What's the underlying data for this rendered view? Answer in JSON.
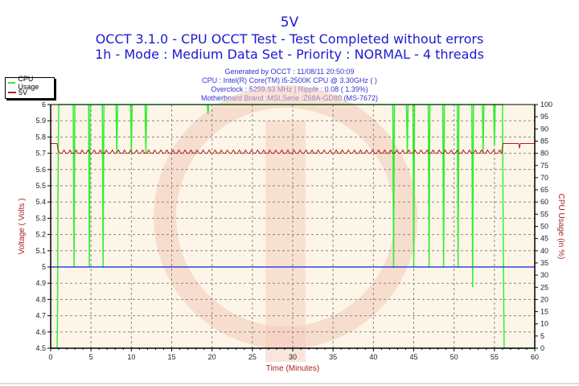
{
  "header": {
    "title": "5V",
    "subtitle": "OCCT 3.1.0 - CPU OCCT Test - Test Completed without errors",
    "mode_line": "1h - Mode : Medium Data Set - Priority : NORMAL - 4 threads"
  },
  "info": {
    "generated": "Generated by OCCT : 11/08/11 20:50:09",
    "cpu": "CPU : Intel(R) Core(TM) i5-2500K CPU @ 3.30GHz (  )",
    "overclock": "Overclock : 5299.93 MHz | Ripple : 0.08 ( 1.39%)",
    "motherboard": "Motherboard Brand :MSI,Serie :Z68A-GD80 (MS-7672)"
  },
  "legend": {
    "items": [
      {
        "label": "CPU Usage",
        "color": "#33ee33"
      },
      {
        "label": "5V",
        "color": "#aa2222"
      }
    ]
  },
  "colors": {
    "title": "#1a1ad0",
    "plot_bg": "#fdf6e8",
    "cpu": "#33ee33",
    "voltage": "#aa2222",
    "reference": "#3344dd",
    "axis_label": "#aa2222"
  },
  "chart_data": {
    "type": "line",
    "title": "5V",
    "xlabel": "Time (Minutes)",
    "ylabel": "Voltage ( Volts )",
    "y2label": "CPU Usage (in %)",
    "xlim": [
      0,
      60
    ],
    "ylim": [
      4.5,
      6
    ],
    "y2lim": [
      0,
      100
    ],
    "x_ticks": [
      0,
      5,
      10,
      15,
      20,
      25,
      30,
      35,
      40,
      45,
      50,
      55,
      60
    ],
    "y_ticks": [
      4.5,
      4.6,
      4.7,
      4.8,
      4.9,
      5,
      5.1,
      5.2,
      5.3,
      5.4,
      5.5,
      5.6,
      5.7,
      5.8,
      5.9,
      6
    ],
    "y2_ticks": [
      0,
      5,
      10,
      15,
      20,
      25,
      30,
      35,
      40,
      45,
      50,
      55,
      60,
      65,
      70,
      75,
      80,
      85,
      90,
      95,
      100
    ],
    "grid": true,
    "legend_position": "top-left",
    "series": [
      {
        "name": "5V",
        "axis": "left",
        "description": "Voltage ~5.76V at idle (0-0.8 min, 56-60 min), oscillating 5.70-5.72V under load",
        "x": [
          0,
          0.8,
          0.9,
          56,
          56.1,
          58,
          58.1,
          58.2,
          60
        ],
        "values": [
          5.76,
          5.76,
          5.71,
          5.71,
          5.76,
          5.76,
          5.73,
          5.76,
          5.76
        ]
      },
      {
        "name": "CPU Usage",
        "axis": "right",
        "description": "CPU at ~100% during test with intermittent dips; 0% at start and after ~56 min",
        "x": [
          0,
          0.8,
          1.0,
          2.9,
          4.8,
          6.5,
          8.2,
          10.0,
          11.8,
          42.6,
          44.4,
          46.2,
          48.0,
          49.8,
          51.6,
          53.4,
          55.0,
          56.2,
          60
        ],
        "values": [
          0,
          0,
          100,
          33,
          33,
          33,
          80,
          80,
          80,
          33,
          33,
          33,
          33,
          33,
          25,
          80,
          80,
          0,
          0
        ]
      },
      {
        "name": "Reference",
        "axis": "left",
        "description": "Nominal 5V reference line",
        "x": [
          0,
          60
        ],
        "values": [
          5.0,
          5.0
        ]
      }
    ]
  }
}
